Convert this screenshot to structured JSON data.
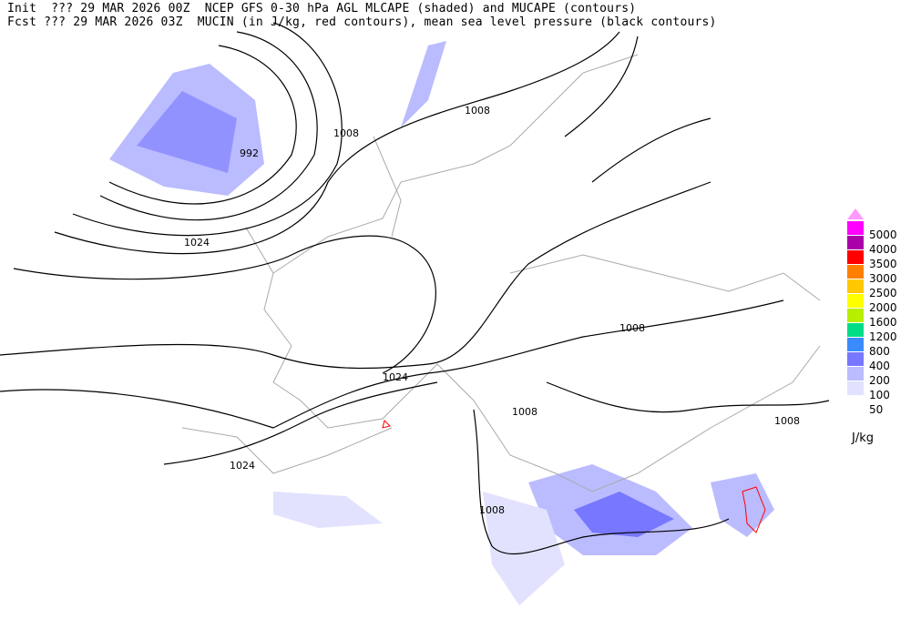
{
  "header": {
    "line1": "Init  ??? 29 MAR 2026 00Z  NCEP GFS 0-30 hPa AGL MLCAPE (shaded) and MUCAPE (contours)",
    "line2": "Fcst ??? 29 MAR 2026 03Z  MUCIN (in J/kg, red contours), mean sea level pressure (black contours)"
  },
  "legend": {
    "unit": "J/kg",
    "overflow_color": "#ff99ff",
    "levels": [
      {
        "label": "5000",
        "color": "#ff00ff"
      },
      {
        "label": "4000",
        "color": "#aa00aa"
      },
      {
        "label": "3500",
        "color": "#ff0000"
      },
      {
        "label": "3000",
        "color": "#ff7f00"
      },
      {
        "label": "2500",
        "color": "#ffc800"
      },
      {
        "label": "2000",
        "color": "#ffff00"
      },
      {
        "label": "1600",
        "color": "#b8ee00"
      },
      {
        "label": "1200",
        "color": "#00dd88"
      },
      {
        "label": "800",
        "color": "#3b8bff"
      },
      {
        "label": "400",
        "color": "#7777ff"
      },
      {
        "label": "200",
        "color": "#bbbbff"
      },
      {
        "label": "100",
        "color": "#e2e2ff"
      },
      {
        "label": "50",
        "color": ""
      }
    ]
  },
  "map": {
    "pressure_labels": [
      "992",
      "1008",
      "1008",
      "1024",
      "1008",
      "1024",
      "1008",
      "1008",
      "1024",
      "1008"
    ],
    "contour_color": "#000000",
    "coastline_color": "#aaaaaa",
    "cin_color": "#ff0000"
  }
}
